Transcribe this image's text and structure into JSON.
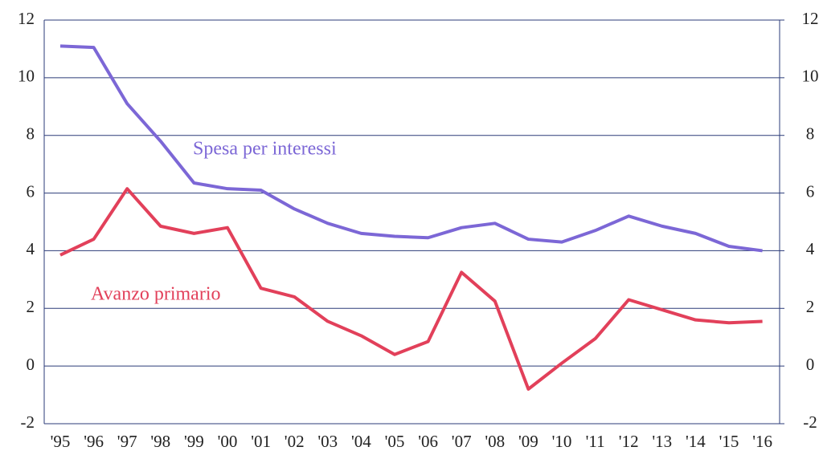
{
  "chart_data": {
    "type": "line",
    "categories": [
      "'95",
      "'96",
      "'97",
      "'98",
      "'99",
      "'00",
      "'01",
      "'02",
      "'03",
      "'04",
      "'05",
      "'06",
      "'07",
      "'08",
      "'09",
      "'10",
      "'11",
      "'12",
      "'13",
      "'14",
      "'15",
      "'16"
    ],
    "series": [
      {
        "name": "Spesa per interessi",
        "color": "#7c67d6",
        "values": [
          11.1,
          11.05,
          9.1,
          7.8,
          6.35,
          6.15,
          6.1,
          5.45,
          4.95,
          4.6,
          4.5,
          4.45,
          4.8,
          4.95,
          4.4,
          4.3,
          4.7,
          5.2,
          4.85,
          4.6,
          4.15,
          4.0
        ]
      },
      {
        "name": "Avanzo primario",
        "color": "#e2405a",
        "values": [
          3.85,
          4.4,
          6.15,
          4.85,
          4.6,
          4.8,
          2.7,
          2.4,
          1.55,
          1.05,
          0.4,
          0.85,
          3.25,
          2.25,
          -0.8,
          0.1,
          0.95,
          2.3,
          1.95,
          1.6,
          1.5,
          1.55
        ]
      }
    ],
    "ylim": [
      -2,
      12
    ],
    "yticks": [
      -2,
      0,
      2,
      4,
      6,
      8,
      10,
      12
    ],
    "y2lim": [
      -2,
      12
    ],
    "y2ticks": [
      -2,
      0,
      2,
      4,
      6,
      8,
      10,
      12
    ],
    "grid": true
  }
}
